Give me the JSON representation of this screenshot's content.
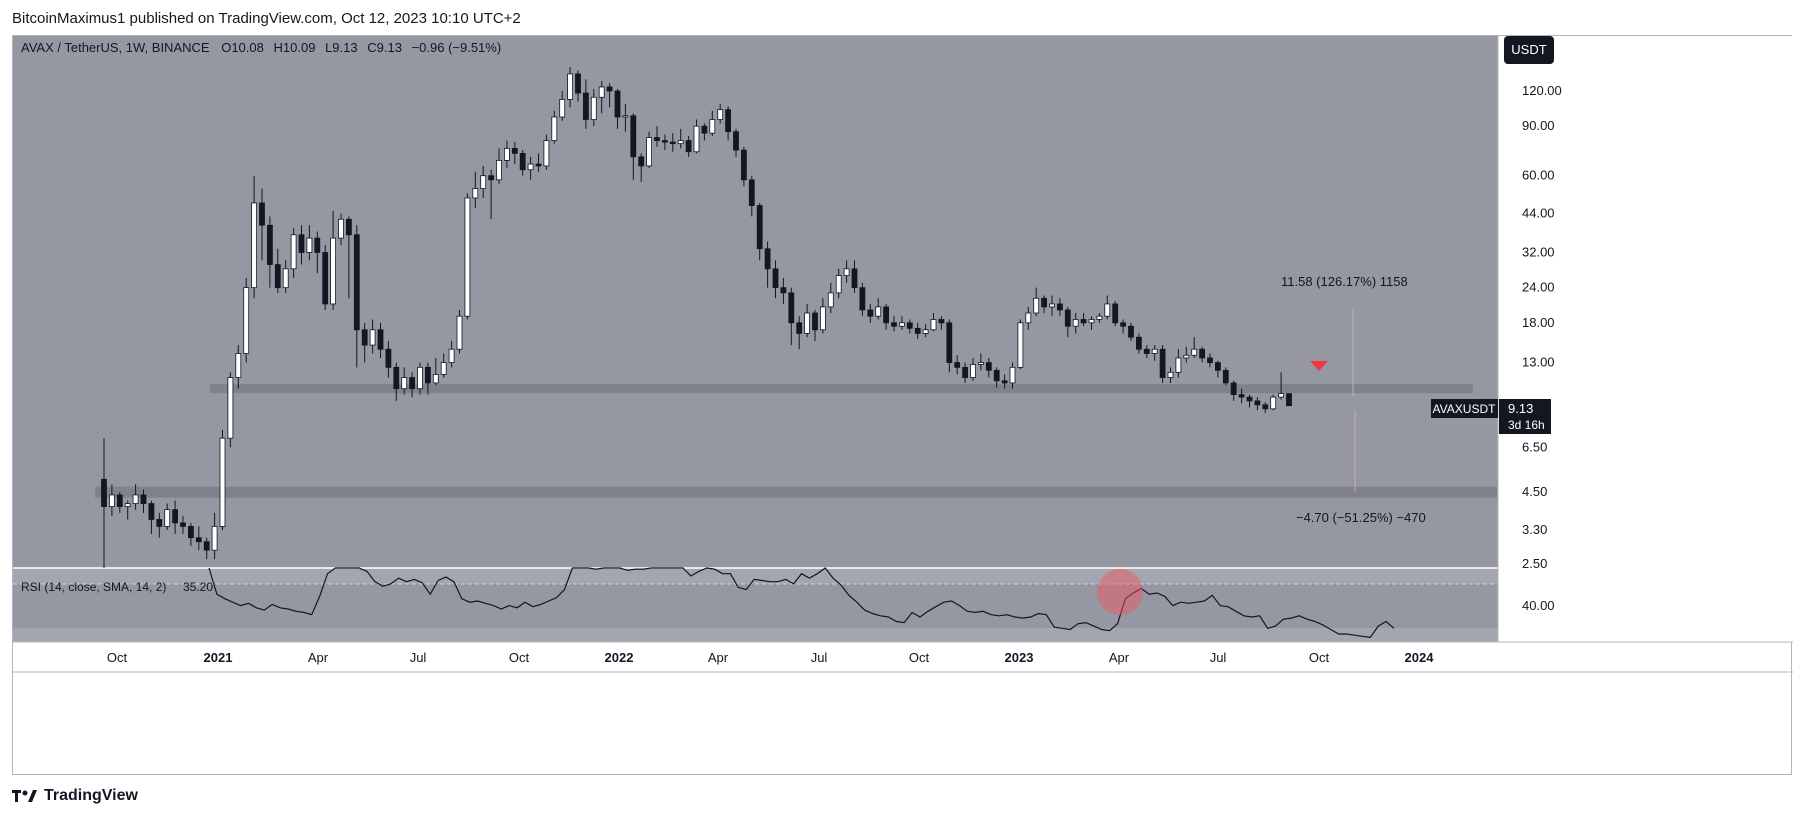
{
  "header": {
    "published_by": "BitcoinMaximus1 published on TradingView.com, Oct 12, 2023 10:10 UTC+2"
  },
  "brand": {
    "label": "TradingView",
    "icon": "tradingview-logo-icon"
  },
  "legend": {
    "symbol": "AVAX / TetherUS, 1W, BINANCE",
    "open_label": "O",
    "open": "10.08",
    "high_label": "H",
    "high": "10.09",
    "low_label": "L",
    "low": "9.13",
    "close_label": "C",
    "close": "9.13",
    "change": "−0.96 (−9.51%)"
  },
  "currency_button": {
    "label": "USDT"
  },
  "price_tag": {
    "symbol": "AVAXUSDT",
    "price": "9.13",
    "countdown": "3d 16h"
  },
  "measure_up": {
    "label": "11.58 (126.17%) 1158"
  },
  "measure_down": {
    "label": "−4.70 (−51.25%) −470"
  },
  "rsi": {
    "legend": "RSI (14, close, SMA, 14, 2)",
    "value": "35.20",
    "tick": "40.00"
  },
  "colors": {
    "pane_bg": "#9598a1",
    "rsi_bg": "#a3a6af",
    "candle_up": "#ffffff",
    "candle_down": "#131722",
    "zone": "#787b86",
    "signal_arrow": "#f23645",
    "rsi_highlight": "#f7525f"
  },
  "chart_data": {
    "type": "candlestick",
    "symbol": "AVAXUSDT",
    "interval": "1W",
    "y_scale": "log",
    "ylim": [
      2.2,
      160
    ],
    "y_ticks": [
      "120.00",
      "90.00",
      "60.00",
      "44.00",
      "32.00",
      "24.00",
      "18.00",
      "13.00",
      "9.13",
      "6.50",
      "4.50",
      "3.30",
      "2.50"
    ],
    "x_ticks": [
      "Oct",
      "2021",
      "Apr",
      "Jul",
      "Oct",
      "2022",
      "Apr",
      "Jul",
      "Oct",
      "2023",
      "Apr",
      "Jul",
      "Oct",
      "2024"
    ],
    "zones": [
      {
        "price": 10.5
      },
      {
        "price": 4.5
      }
    ],
    "candles": [
      [
        5.0,
        4.0,
        7.0,
        2.3
      ],
      [
        4.0,
        4.4,
        4.8,
        3.7
      ],
      [
        4.4,
        4.0,
        4.5,
        3.8
      ],
      [
        4.0,
        4.1,
        4.2,
        3.6
      ],
      [
        4.1,
        4.4,
        4.8,
        3.9
      ],
      [
        4.4,
        4.1,
        4.6,
        3.8
      ],
      [
        4.1,
        3.6,
        4.2,
        3.2
      ],
      [
        3.6,
        3.4,
        3.8,
        3.1
      ],
      [
        3.4,
        3.9,
        4.1,
        3.3
      ],
      [
        3.9,
        3.5,
        4.2,
        3.2
      ],
      [
        3.5,
        3.4,
        3.7,
        3.2
      ],
      [
        3.4,
        3.1,
        3.5,
        2.9
      ],
      [
        3.1,
        3.0,
        3.4,
        2.8
      ],
      [
        3.0,
        2.8,
        3.1,
        2.6
      ],
      [
        2.8,
        3.4,
        3.8,
        2.6
      ],
      [
        3.4,
        7.0,
        7.5,
        3.3
      ],
      [
        7.0,
        11.5,
        12.0,
        6.5
      ],
      [
        11.5,
        14.0,
        15.0,
        10.5
      ],
      [
        14.0,
        24.0,
        26.0,
        13.0
      ],
      [
        24.0,
        48.0,
        60.0,
        22.0
      ],
      [
        48.0,
        40.0,
        54.0,
        30.0
      ],
      [
        40.0,
        29.0,
        43.0,
        24.0
      ],
      [
        29.0,
        24.0,
        33.0,
        23.0
      ],
      [
        24.0,
        28.0,
        30.0,
        23.0
      ],
      [
        28.0,
        37.0,
        39.0,
        26.0
      ],
      [
        37.0,
        32.0,
        40.0,
        29.0
      ],
      [
        32.0,
        36.0,
        40.0,
        30.0
      ],
      [
        36.0,
        32.0,
        38.0,
        27.0
      ],
      [
        32.0,
        21.0,
        34.0,
        20.0
      ],
      [
        21.0,
        36.0,
        45.0,
        20.0
      ],
      [
        36.0,
        42.0,
        44.0,
        34.0
      ],
      [
        42.0,
        37.0,
        43.0,
        22.0
      ],
      [
        37.0,
        17.0,
        40.0,
        12.5
      ],
      [
        17.0,
        15.0,
        18.0,
        13.0
      ],
      [
        15.0,
        17.0,
        18.5,
        14.0
      ],
      [
        17.0,
        14.5,
        18.0,
        13.5
      ],
      [
        14.5,
        12.5,
        15.5,
        11.5
      ],
      [
        12.5,
        10.5,
        13.0,
        9.5
      ],
      [
        10.5,
        11.5,
        12.5,
        10.0
      ],
      [
        11.5,
        10.5,
        12.0,
        9.8
      ],
      [
        10.5,
        12.5,
        13.0,
        10.0
      ],
      [
        12.5,
        11.0,
        13.0,
        10.0
      ],
      [
        11.0,
        11.8,
        13.5,
        10.8
      ],
      [
        11.8,
        13.0,
        14.0,
        11.5
      ],
      [
        13.0,
        14.5,
        15.5,
        12.5
      ],
      [
        14.5,
        19.0,
        20.0,
        14.0
      ],
      [
        19.0,
        50.0,
        52.0,
        18.5
      ],
      [
        50.0,
        54.0,
        62.0,
        46.0
      ],
      [
        54.0,
        60.0,
        65.0,
        50.0
      ],
      [
        60.0,
        58.0,
        63.0,
        42.0
      ],
      [
        58.0,
        68.0,
        75.0,
        56.0
      ],
      [
        68.0,
        75.0,
        80.0,
        64.0
      ],
      [
        75.0,
        72.0,
        79.0,
        66.0
      ],
      [
        72.0,
        63.0,
        74.0,
        60.0
      ],
      [
        63.0,
        66.0,
        70.0,
        58.0
      ],
      [
        66.0,
        65.0,
        72.0,
        62.0
      ],
      [
        65.0,
        80.0,
        84.0,
        63.0
      ],
      [
        80.0,
        97.0,
        102.0,
        78.0
      ],
      [
        97.0,
        112.0,
        120.0,
        94.0
      ],
      [
        112.0,
        138.0,
        146.0,
        105.0
      ],
      [
        138.0,
        118.0,
        142.0,
        110.0
      ],
      [
        118.0,
        95.0,
        132.0,
        88.0
      ],
      [
        95.0,
        114.0,
        122.0,
        90.0
      ],
      [
        114.0,
        124.0,
        130.0,
        100.0
      ],
      [
        124.0,
        120.0,
        128.0,
        105.0
      ],
      [
        120.0,
        97.0,
        122.0,
        88.0
      ],
      [
        97.0,
        98.0,
        108.0,
        86.0
      ],
      [
        98.0,
        70.0,
        100.0,
        58.0
      ],
      [
        70.0,
        65.0,
        72.0,
        57.0
      ],
      [
        65.0,
        82.0,
        86.0,
        64.0
      ],
      [
        82.0,
        80.0,
        90.0,
        76.0
      ],
      [
        80.0,
        79.0,
        84.0,
        74.0
      ],
      [
        79.0,
        78.0,
        85.0,
        73.0
      ],
      [
        78.0,
        80.0,
        88.0,
        75.0
      ],
      [
        80.0,
        73.0,
        83.0,
        70.0
      ],
      [
        73.0,
        90.0,
        95.0,
        72.0
      ],
      [
        90.0,
        85.0,
        92.0,
        80.0
      ],
      [
        85.0,
        95.0,
        102.0,
        83.0
      ],
      [
        95.0,
        103.0,
        108.0,
        92.0
      ],
      [
        103.0,
        86.0,
        106.0,
        80.0
      ],
      [
        86.0,
        74.0,
        88.0,
        70.0
      ],
      [
        74.0,
        58.0,
        76.0,
        55.0
      ],
      [
        58.0,
        47.0,
        60.0,
        43.0
      ],
      [
        47.0,
        33.0,
        48.0,
        30.0
      ],
      [
        33.0,
        28.0,
        35.0,
        24.0
      ],
      [
        28.0,
        24.0,
        30.0,
        22.0
      ],
      [
        24.0,
        23.0,
        26.0,
        21.0
      ],
      [
        23.0,
        18.0,
        24.0,
        15.0
      ],
      [
        18.0,
        16.5,
        19.0,
        14.5
      ],
      [
        16.5,
        19.5,
        21.0,
        16.0
      ],
      [
        19.5,
        17.0,
        20.0,
        15.5
      ],
      [
        17.0,
        20.5,
        22.0,
        16.5
      ],
      [
        20.5,
        23.0,
        25.0,
        19.5
      ],
      [
        23.0,
        26.5,
        28.0,
        22.0
      ],
      [
        26.5,
        28.0,
        30.0,
        25.0
      ],
      [
        28.0,
        24.0,
        30.0,
        23.0
      ],
      [
        24.0,
        20.0,
        25.0,
        19.0
      ],
      [
        20.0,
        19.0,
        21.0,
        18.0
      ],
      [
        19.0,
        20.5,
        22.0,
        18.5
      ],
      [
        20.5,
        18.0,
        21.0,
        17.0
      ],
      [
        18.0,
        17.5,
        19.0,
        16.8
      ],
      [
        17.5,
        18.0,
        19.0,
        17.0
      ],
      [
        18.0,
        17.2,
        18.5,
        16.5
      ],
      [
        17.2,
        16.5,
        18.0,
        15.8
      ],
      [
        16.5,
        17.0,
        17.8,
        16.0
      ],
      [
        17.0,
        18.5,
        19.5,
        16.8
      ],
      [
        18.5,
        18.0,
        19.0,
        17.0
      ],
      [
        18.0,
        13.0,
        18.5,
        12.0
      ],
      [
        13.0,
        12.5,
        13.8,
        11.8
      ],
      [
        12.5,
        11.5,
        13.0,
        11.0
      ],
      [
        11.5,
        12.8,
        13.5,
        11.2
      ],
      [
        12.8,
        13.0,
        14.0,
        12.2
      ],
      [
        13.0,
        12.2,
        13.5,
        11.5
      ],
      [
        12.2,
        11.2,
        12.5,
        10.6
      ],
      [
        11.2,
        11.0,
        11.8,
        10.5
      ],
      [
        11.0,
        12.5,
        13.0,
        10.5
      ],
      [
        12.5,
        18.0,
        18.5,
        12.3
      ],
      [
        18.0,
        19.5,
        20.5,
        17.0
      ],
      [
        19.5,
        22.0,
        24.0,
        19.0
      ],
      [
        22.0,
        20.5,
        22.5,
        19.5
      ],
      [
        20.5,
        21.0,
        22.5,
        19.0
      ],
      [
        21.0,
        20.0,
        22.0,
        19.0
      ],
      [
        20.0,
        17.5,
        20.5,
        16.0
      ],
      [
        17.5,
        18.5,
        19.5,
        16.5
      ],
      [
        18.5,
        18.0,
        19.5,
        17.5
      ],
      [
        18.0,
        18.5,
        19.0,
        17.0
      ],
      [
        18.5,
        19.0,
        19.5,
        18.0
      ],
      [
        19.0,
        21.0,
        22.5,
        18.5
      ],
      [
        21.0,
        18.0,
        21.5,
        17.5
      ],
      [
        18.0,
        17.5,
        18.5,
        16.5
      ],
      [
        17.5,
        16.0,
        18.0,
        15.5
      ],
      [
        16.0,
        14.5,
        16.5,
        14.0
      ],
      [
        14.5,
        14.0,
        15.0,
        13.5
      ],
      [
        14.0,
        14.5,
        15.0,
        13.2
      ],
      [
        14.5,
        11.5,
        15.0,
        11.0
      ],
      [
        11.5,
        12.0,
        12.5,
        11.0
      ],
      [
        12.0,
        13.5,
        14.5,
        11.5
      ],
      [
        13.5,
        13.8,
        14.8,
        13.0
      ],
      [
        13.8,
        14.5,
        16.0,
        13.5
      ],
      [
        14.5,
        13.5,
        14.8,
        13.0
      ],
      [
        13.5,
        13.0,
        14.0,
        12.5
      ],
      [
        13.0,
        12.2,
        13.2,
        11.5
      ],
      [
        12.2,
        11.0,
        12.5,
        10.8
      ],
      [
        11.0,
        10.0,
        11.2,
        9.5
      ],
      [
        10.0,
        9.8,
        10.5,
        9.3
      ],
      [
        9.8,
        9.5,
        10.0,
        9.0
      ],
      [
        9.5,
        9.2,
        9.8,
        8.8
      ],
      [
        9.2,
        8.9,
        9.4,
        8.6
      ],
      [
        8.9,
        9.8,
        10.0,
        8.8
      ],
      [
        9.8,
        10.08,
        12.0,
        9.6
      ],
      [
        10.08,
        9.13,
        10.09,
        9.13
      ]
    ],
    "rsi": {
      "range": [
        20,
        85
      ],
      "levels": [
        70,
        30
      ],
      "values": [
        85,
        62,
        58,
        55,
        52,
        54,
        50,
        48,
        53,
        50,
        49,
        47,
        46,
        44,
        60,
        80,
        85,
        85,
        85,
        85,
        82,
        73,
        69,
        71,
        76,
        73,
        75,
        72,
        62,
        74,
        77,
        73,
        58,
        55,
        56,
        54,
        52,
        49,
        52,
        50,
        55,
        51,
        53,
        56,
        59,
        66,
        85,
        85,
        85,
        84,
        85,
        85,
        85,
        83,
        84,
        84,
        85,
        85,
        85,
        85,
        85,
        78,
        82,
        85,
        84,
        80,
        80,
        68,
        66,
        75,
        74,
        73,
        73,
        75,
        71,
        80,
        76,
        80,
        85,
        76,
        70,
        61,
        55,
        48,
        45,
        43,
        42,
        38,
        37,
        46,
        42,
        47,
        51,
        55,
        56,
        52,
        47,
        46,
        47,
        44,
        43,
        44,
        42,
        41,
        42,
        45,
        44,
        33,
        32,
        31,
        36,
        37,
        34,
        31,
        30,
        36,
        58,
        63,
        67,
        62,
        63,
        60,
        52,
        55,
        54,
        55,
        56,
        61,
        52,
        51,
        47,
        43,
        42,
        43,
        32,
        34,
        40,
        41,
        43,
        40,
        38,
        35,
        31,
        27,
        27,
        26,
        25,
        24,
        34,
        38,
        32
      ]
    }
  }
}
